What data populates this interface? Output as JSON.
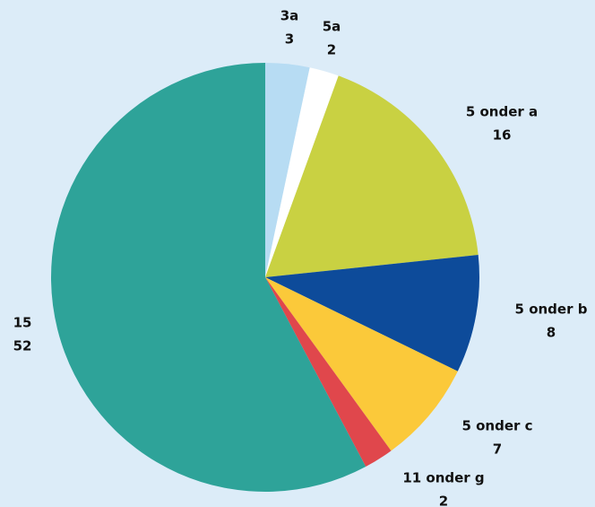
{
  "chart_data": {
    "type": "pie",
    "categories": [
      "3a",
      "5a",
      "5 onder a",
      "5 onder b",
      "5 onder c",
      "11 onder g",
      "15"
    ],
    "values": [
      3,
      2,
      16,
      8,
      7,
      2,
      52
    ],
    "colors": [
      "#b7dcf3",
      "#ffffff",
      "#c9d142",
      "#0d4b9a",
      "#fbc93a",
      "#e0474c",
      "#2ea399"
    ]
  }
}
